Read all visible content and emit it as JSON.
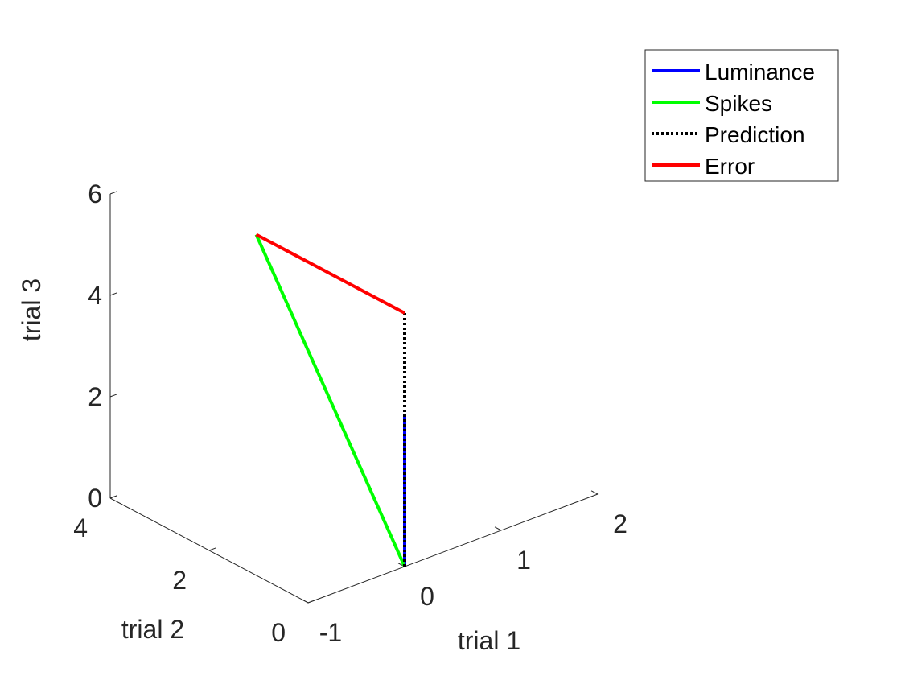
{
  "chart_data": {
    "type": "line",
    "projection": "3d",
    "xlabel": "trial 1",
    "ylabel": "trial 2",
    "zlabel": "trial 3",
    "xlim": [
      -1,
      2
    ],
    "ylim": [
      0,
      4
    ],
    "zlim": [
      0,
      6
    ],
    "xticks": [
      -1,
      0,
      1,
      2
    ],
    "yticks": [
      0,
      2,
      4
    ],
    "zticks": [
      0,
      2,
      4,
      6
    ],
    "grid": false,
    "legend_position": "top-right",
    "series": [
      {
        "name": "Luminance",
        "color": "#0000ff",
        "style": "solid",
        "points": [
          [
            0,
            0,
            0
          ],
          [
            0,
            0,
            3
          ]
        ]
      },
      {
        "name": "Spikes",
        "color": "#00ff00",
        "style": "solid",
        "points": [
          [
            0,
            0,
            0
          ],
          [
            0,
            3,
            5
          ]
        ]
      },
      {
        "name": "Prediction",
        "color": "#000000",
        "style": "dotted",
        "points": [
          [
            0,
            0,
            0
          ],
          [
            0,
            0,
            5
          ]
        ]
      },
      {
        "name": "Error",
        "color": "#ff0000",
        "style": "solid",
        "points": [
          [
            0,
            0,
            5
          ],
          [
            0,
            3,
            5
          ]
        ]
      }
    ]
  }
}
